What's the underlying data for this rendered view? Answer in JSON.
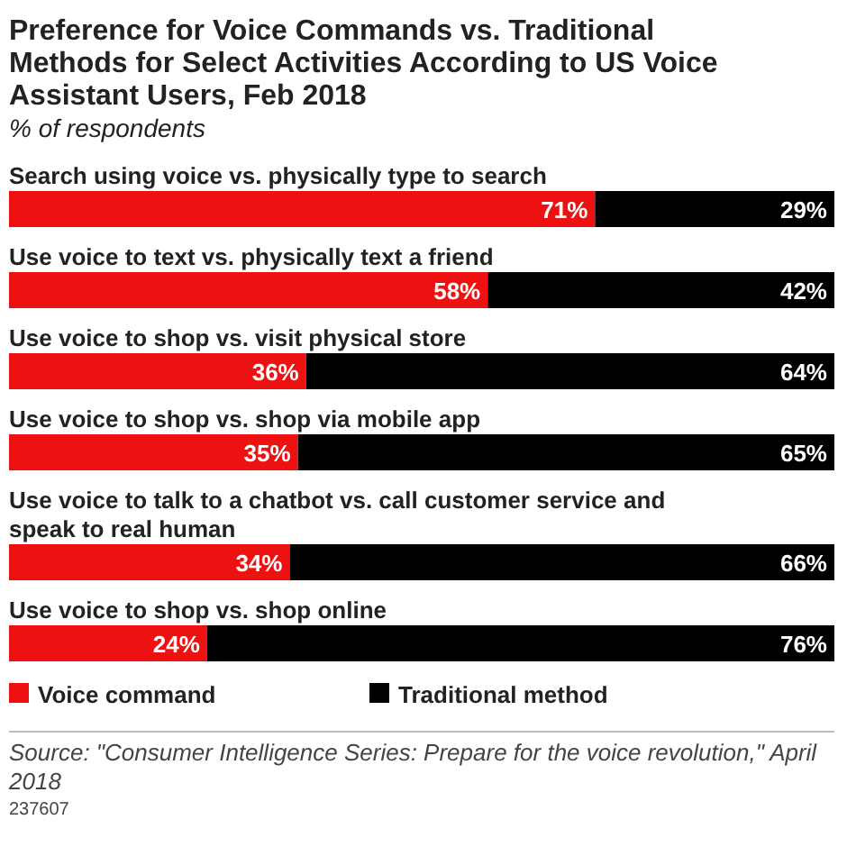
{
  "chart_data": {
    "type": "bar",
    "orientation": "horizontal",
    "stacked": true,
    "title": "Preference for Voice Commands vs. Traditional Methods for Select Activities According to US Voice Assistant Users, Feb 2018",
    "subtitle": "% of respondents",
    "categories": [
      "Search using voice vs. physically type to search",
      "Use voice to text vs. physically text a friend",
      "Use voice to shop vs. visit physical store",
      "Use voice to shop vs. shop via mobile app",
      "Use voice to talk to a chatbot vs. call customer service and speak to real human",
      "Use voice to shop vs. shop online"
    ],
    "xlim": [
      0,
      100
    ],
    "legend": "bottom",
    "series": [
      {
        "name": "Voice command",
        "color": "#ee1111",
        "values": [
          71,
          58,
          36,
          35,
          34,
          24
        ],
        "value_labels": [
          "71%",
          "58%",
          "36%",
          "35%",
          "34%",
          "24%"
        ]
      },
      {
        "name": "Traditional method",
        "color": "#000000",
        "values": [
          29,
          42,
          64,
          65,
          66,
          76
        ],
        "value_labels": [
          "29%",
          "42%",
          "64%",
          "65%",
          "66%",
          "76%"
        ]
      }
    ],
    "annotations": [
      "Source: \"Consumer Intelligence Series: Prepare for the voice revolution,\" April 2018",
      "237607"
    ]
  }
}
